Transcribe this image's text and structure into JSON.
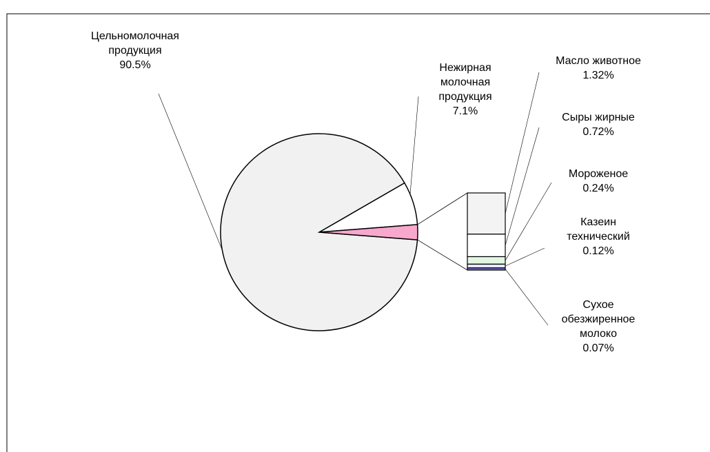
{
  "chart_data": {
    "type": "bar_of_pie",
    "categories": [
      "Цельномолочная продукция",
      "Нежирная молочная продукция"
    ],
    "values": [
      90.5,
      7.1
    ],
    "value_labels": [
      "90.5%",
      "7.1%"
    ],
    "colors": [
      "#f1f1f1",
      "#ffffff"
    ],
    "other_color": "#f7a8cc",
    "breakout": {
      "categories": [
        "Масло животное",
        "Сыры жирные",
        "Мороженое",
        "Казеин технический",
        "Сухое обезжиренное молоко"
      ],
      "values": [
        1.32,
        0.72,
        0.24,
        0.12,
        0.07
      ],
      "value_labels": [
        "1.32%",
        "0.72%",
        "0.24%",
        "0.12%",
        "0.07%"
      ],
      "colors": [
        "#f3f3f3",
        "#ffffff",
        "#e2f7e2",
        "#e6e6f7",
        "#6f6fd6"
      ]
    }
  }
}
